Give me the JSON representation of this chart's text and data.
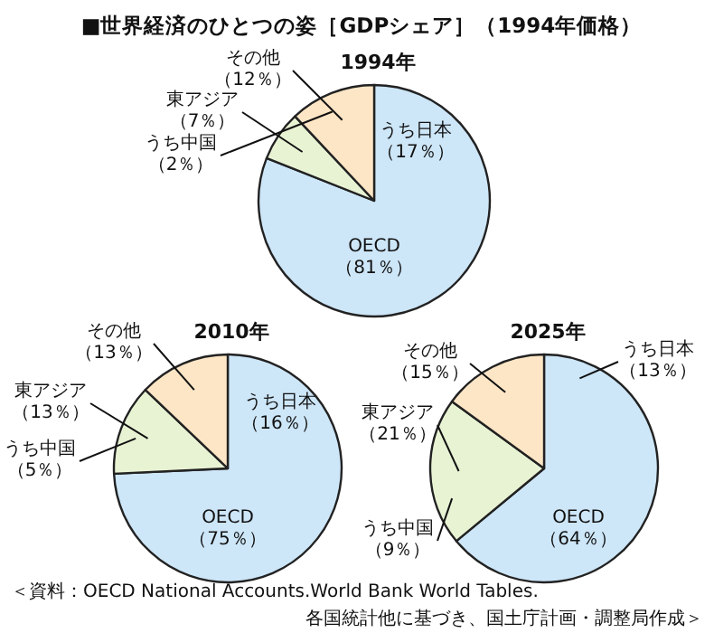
{
  "chart_data": [
    {
      "type": "other",
      "title": "■世界経済のひとつの姿［GDPシェア］（1994年価格）",
      "annotations": [
        "＜資料：OECD National Accounts.World Bank World Tables.",
        "各国統計他に基づき、国土庁計画・調整局作成＞"
      ]
    },
    {
      "type": "pie",
      "title": "1994年",
      "categories": [
        "OECD",
        "東アジア",
        "その他"
      ],
      "values": [
        81,
        7,
        12
      ],
      "colors": [
        "#cde6f8",
        "#e8f3d4",
        "#fde6c6"
      ],
      "value_labels": [
        "（81％）",
        "（7％）",
        "（12％）"
      ],
      "annotations": [
        "うち日本",
        "（17％）",
        "うち中国",
        "（2％）"
      ]
    },
    {
      "type": "pie",
      "title": "2010年",
      "categories": [
        "OECD",
        "東アジア",
        "その他"
      ],
      "values": [
        75,
        13,
        13
      ],
      "colors": [
        "#cde6f8",
        "#e8f3d4",
        "#fde6c6"
      ],
      "value_labels": [
        "（75％）",
        "（13％）",
        "（13％）"
      ],
      "annotations": [
        "うち日本",
        "（16％）",
        "うち中国",
        "（5％）"
      ]
    },
    {
      "type": "pie",
      "title": "2025年",
      "categories": [
        "OECD",
        "東アジア",
        "その他"
      ],
      "values": [
        64,
        21,
        15
      ],
      "colors": [
        "#cde6f8",
        "#e8f3d4",
        "#fde6c6"
      ],
      "value_labels": [
        "（64％）",
        "（21％）",
        "（15％）"
      ],
      "annotations": [
        "うち日本",
        "（13％）",
        "うち中国",
        "（9％）"
      ]
    }
  ]
}
